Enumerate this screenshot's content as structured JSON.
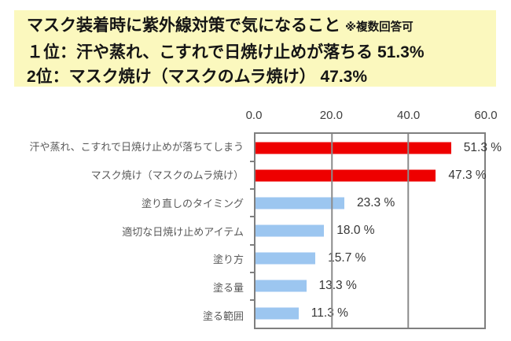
{
  "header": {
    "title": "マスク装着時に紫外線対策で気になること",
    "note": "※複数回答可",
    "rank1": "１位：汗や蒸れ、こすれで日焼け止めが落ちる 51.3%",
    "rank2": "2位：マスク焼け（マスクのムラ焼け） 47.3%",
    "bg_color": "#FBF8BE"
  },
  "chart_data": {
    "type": "bar",
    "orientation": "horizontal",
    "title": "マスク装着時に紫外線対策で気になること（複数回答可）",
    "categories": [
      "汗や蒸れ、こすれで日焼け止めが落ちてしまう",
      "マスク焼け（マスクのムラ焼け）",
      "塗り直しのタイミング",
      "適切な日焼け止めアイテム",
      "塗り方",
      "塗る量",
      "塗る範囲"
    ],
    "values": [
      51.3,
      47.3,
      23.3,
      18.0,
      15.7,
      13.3,
      11.3
    ],
    "value_labels": [
      "51.3 %",
      "47.3 %",
      "23.3 %",
      "18.0 %",
      "15.7 %",
      "13.3 %",
      "11.3 %"
    ],
    "bar_colors": [
      "#EE0000",
      "#EE0000",
      "#9CC6F0",
      "#9CC6F0",
      "#9CC6F0",
      "#9CC6F0",
      "#9CC6F0"
    ],
    "x_ticks": [
      "0.0",
      "20.0",
      "40.0",
      "60.0"
    ],
    "xlim": [
      0,
      60
    ],
    "grid": true,
    "legend": "none",
    "colors": {
      "highlight": "#EE0000",
      "normal": "#9CC6F0",
      "axis": "#7F7F7F",
      "tick_text": "#3F3F3F",
      "category_text": "#595959"
    }
  }
}
